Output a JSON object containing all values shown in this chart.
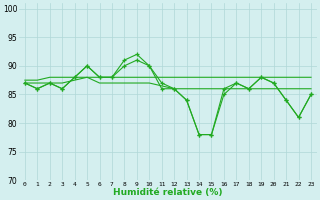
{
  "xlabel": "Humidité relative (%)",
  "xlim": [
    -0.5,
    23.5
  ],
  "ylim": [
    70,
    101
  ],
  "yticks": [
    70,
    75,
    80,
    85,
    90,
    95,
    100
  ],
  "xticks": [
    0,
    1,
    2,
    3,
    4,
    5,
    6,
    7,
    8,
    9,
    10,
    11,
    12,
    13,
    14,
    15,
    16,
    17,
    18,
    19,
    20,
    21,
    22,
    23
  ],
  "bg_color": "#d4efef",
  "grid_color": "#b0d8d8",
  "line_color": "#22aa22",
  "lines": [
    [
      87,
      86,
      87,
      86,
      88,
      90,
      88,
      88,
      91,
      92,
      90,
      86,
      86,
      84,
      78,
      78,
      85,
      87,
      86,
      88,
      87,
      84,
      81,
      85
    ],
    [
      87,
      86,
      87,
      86,
      88,
      90,
      88,
      88,
      90,
      91,
      90,
      87,
      86,
      84,
      78,
      78,
      86,
      87,
      86,
      88,
      87,
      84,
      81,
      85
    ],
    [
      87.5,
      87.5,
      88,
      88,
      88,
      88,
      88,
      88,
      88,
      88,
      88,
      88,
      88,
      88,
      88,
      88,
      88,
      88,
      88,
      88,
      88,
      88,
      88,
      88
    ],
    [
      87,
      87,
      87,
      87,
      87.5,
      88,
      87,
      87,
      87,
      87,
      87,
      86.5,
      86,
      86,
      86,
      86,
      86,
      86,
      86,
      86,
      86,
      86,
      86,
      86
    ]
  ],
  "xlabel_fontsize": 6.5,
  "xtick_fontsize": 4.5,
  "ytick_fontsize": 5.5
}
